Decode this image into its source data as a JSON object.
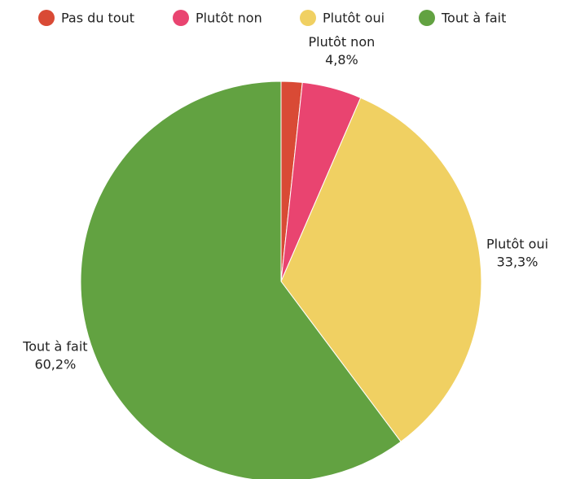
{
  "chart_data": {
    "type": "pie",
    "categories": [
      "Pas du tout",
      "Plutôt non",
      "Plutôt oui",
      "Tout à fait"
    ],
    "values": [
      1.7,
      4.8,
      33.3,
      60.2
    ],
    "value_labels": [
      null,
      "4,8%",
      "33,3%",
      "60,2%"
    ],
    "colors": [
      "#d94a35",
      "#e94470",
      "#f0d062",
      "#62a241"
    ],
    "legend": "top"
  }
}
